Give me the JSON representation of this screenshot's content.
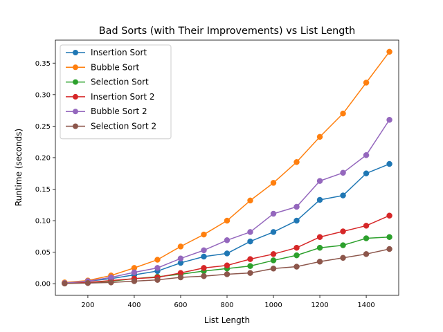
{
  "chart_data": {
    "type": "line",
    "title": "Bad Sorts (with Their Improvements) vs List Length",
    "xlabel": "List Length",
    "ylabel": "Runtime (seconds)",
    "xlim": [
      60,
      1540
    ],
    "ylim": [
      -0.0185,
      0.3865
    ],
    "xticks": [
      200,
      400,
      600,
      800,
      1000,
      1200,
      1400
    ],
    "yticks": [
      0.0,
      0.05,
      0.1,
      0.15,
      0.2,
      0.25,
      0.3,
      0.35
    ],
    "ytick_labels": [
      "0.00",
      "0.05",
      "0.10",
      "0.15",
      "0.20",
      "0.25",
      "0.30",
      "0.35"
    ],
    "grid": false,
    "legend_position": "upper-left",
    "x": [
      100,
      200,
      300,
      400,
      500,
      600,
      700,
      800,
      900,
      1000,
      1100,
      1200,
      1300,
      1400,
      1500
    ],
    "series": [
      {
        "name": "Insertion Sort",
        "color": "#1f77b4",
        "values": [
          0.001,
          0.004,
          0.008,
          0.014,
          0.02,
          0.033,
          0.043,
          0.048,
          0.067,
          0.082,
          0.1,
          0.133,
          0.14,
          0.175,
          0.19
        ]
      },
      {
        "name": "Bubble Sort",
        "color": "#ff7f0e",
        "values": [
          0.002,
          0.005,
          0.013,
          0.025,
          0.038,
          0.059,
          0.078,
          0.1,
          0.132,
          0.16,
          0.193,
          0.233,
          0.27,
          0.319,
          0.368
        ]
      },
      {
        "name": "Selection Sort",
        "color": "#2ca02c",
        "values": [
          0.0005,
          0.002,
          0.004,
          0.008,
          0.011,
          0.015,
          0.02,
          0.024,
          0.028,
          0.037,
          0.045,
          0.057,
          0.061,
          0.072,
          0.074
        ]
      },
      {
        "name": "Insertion Sort 2",
        "color": "#d62728",
        "values": [
          0.0005,
          0.002,
          0.005,
          0.008,
          0.01,
          0.017,
          0.025,
          0.029,
          0.039,
          0.047,
          0.057,
          0.074,
          0.083,
          0.092,
          0.108
        ]
      },
      {
        "name": "Bubble Sort 2",
        "color": "#9467bd",
        "values": [
          0.001,
          0.004,
          0.01,
          0.018,
          0.025,
          0.04,
          0.053,
          0.069,
          0.082,
          0.111,
          0.122,
          0.163,
          0.176,
          0.204,
          0.26
        ]
      },
      {
        "name": "Selection Sort 2",
        "color": "#8c564b",
        "values": [
          0.0003,
          0.001,
          0.002,
          0.004,
          0.006,
          0.01,
          0.012,
          0.015,
          0.017,
          0.024,
          0.027,
          0.035,
          0.041,
          0.047,
          0.055
        ]
      }
    ]
  }
}
